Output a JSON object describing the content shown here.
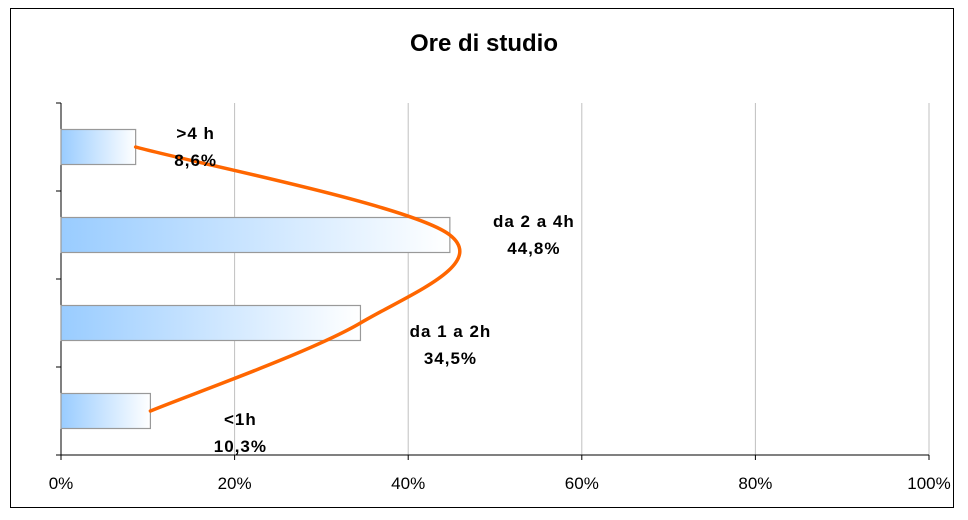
{
  "chart_data": {
    "type": "bar",
    "orientation": "horizontal",
    "title": "Ore di studio",
    "xlabel": "",
    "ylabel": "",
    "xlim": [
      0,
      100
    ],
    "x_ticks": [
      "0%",
      "20%",
      "40%",
      "60%",
      "80%",
      "100%"
    ],
    "categories": [
      ">4h",
      "da 2 a 4h",
      "da 1 a 2h",
      "<1h"
    ],
    "values": [
      8.6,
      44.8,
      34.5,
      10.3
    ],
    "data_labels": [
      {
        "name": ">4 h",
        "value": "8,6%"
      },
      {
        "name": "da 2 a 4h",
        "value": "44,8%"
      },
      {
        "name": "da 1 a 2h",
        "value": "34,5%"
      },
      {
        "name": "<1h",
        "value": "10,3%"
      }
    ],
    "grid": "vertical",
    "legend": "none",
    "colors": {
      "bar_fill_start": "#99ccff",
      "bar_fill_end": "#ffffff",
      "trend_line": "#ff6600",
      "grid": "#c0c0c0"
    }
  }
}
